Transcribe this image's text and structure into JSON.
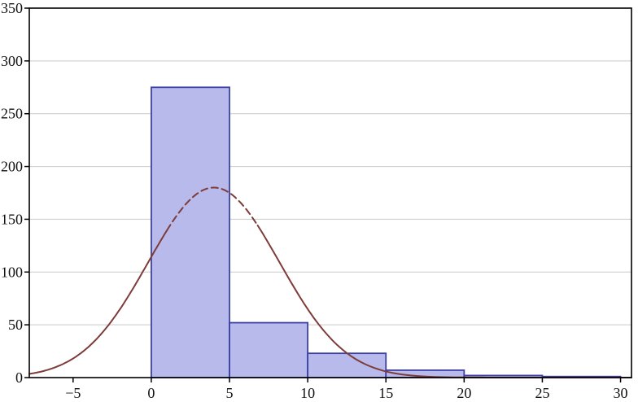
{
  "chart_data": {
    "type": "histogram",
    "title": "",
    "xlabel": "",
    "ylabel": "",
    "xlim": [
      -7.8,
      30.7
    ],
    "ylim": [
      0,
      350
    ],
    "x_ticks": [
      -5,
      0,
      5,
      10,
      15,
      20,
      25,
      30
    ],
    "x_tick_labels": [
      "−5",
      "0",
      "5",
      "10",
      "15",
      "20",
      "25",
      "30"
    ],
    "y_ticks": [
      0,
      50,
      100,
      150,
      200,
      250,
      300,
      350
    ],
    "y_tick_labels": [
      "0",
      "50",
      "100",
      "150",
      "200",
      "250",
      "300",
      "350"
    ],
    "grid": "horizontal",
    "legend": "none",
    "bins": [
      {
        "start": 0,
        "end": 5,
        "count": 275
      },
      {
        "start": 5,
        "end": 10,
        "count": 52
      },
      {
        "start": 10,
        "end": 15,
        "count": 23
      },
      {
        "start": 15,
        "end": 20,
        "count": 7
      },
      {
        "start": 20,
        "end": 25,
        "count": 2
      },
      {
        "start": 25,
        "end": 30,
        "count": 1
      }
    ],
    "curve": {
      "type": "gaussian",
      "mean": 4,
      "sd": 4.2,
      "amplitude": 180,
      "dashed_segment": [
        1.0,
        6.8
      ]
    },
    "colors": {
      "bar_fill": "#b7baea",
      "bar_stroke": "#3c40a6",
      "curve": "#7d3c3a",
      "grid": "#c9c9c9",
      "frame": "#000000",
      "tick_text": "#111111",
      "background": "#ffffff"
    }
  }
}
